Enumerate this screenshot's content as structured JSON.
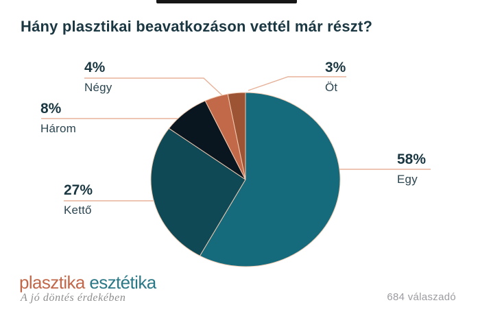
{
  "header": {
    "title": "Hány plasztikai beavatkozáson vettél már részt?"
  },
  "top_bar": {
    "color": "#161616"
  },
  "chart_data": {
    "type": "pie",
    "title": "Hány plasztikai beavatkozáson vettél már részt?",
    "unit": "%",
    "start_angle": "top",
    "direction": "clockwise",
    "slices": [
      {
        "label": "Egy",
        "value": 58,
        "pct": "58%",
        "color": "#156b7c"
      },
      {
        "label": "Kettő",
        "value": 27,
        "pct": "27%",
        "color": "#0f4955"
      },
      {
        "label": "Három",
        "value": 8,
        "pct": "8%",
        "color": "#0a161f"
      },
      {
        "label": "Négy",
        "value": 4,
        "pct": "4%",
        "color": "#c2694a"
      },
      {
        "label": "Öt",
        "value": 3,
        "pct": "3%",
        "color": "#9d5434"
      }
    ],
    "leader_line_color": "#e7b299",
    "slice_border_color": "#f2cbb2",
    "text_color": "#1a3742",
    "source_note": "684 válaszadó"
  },
  "footer": {
    "logo_part1": "plasztika",
    "logo_part2": "esztétika",
    "logo_part1_color": "#c2684a",
    "logo_part2_color": "#2b7987",
    "tagline": "A jó döntés érdekében",
    "respondents": "684 válaszadó"
  }
}
